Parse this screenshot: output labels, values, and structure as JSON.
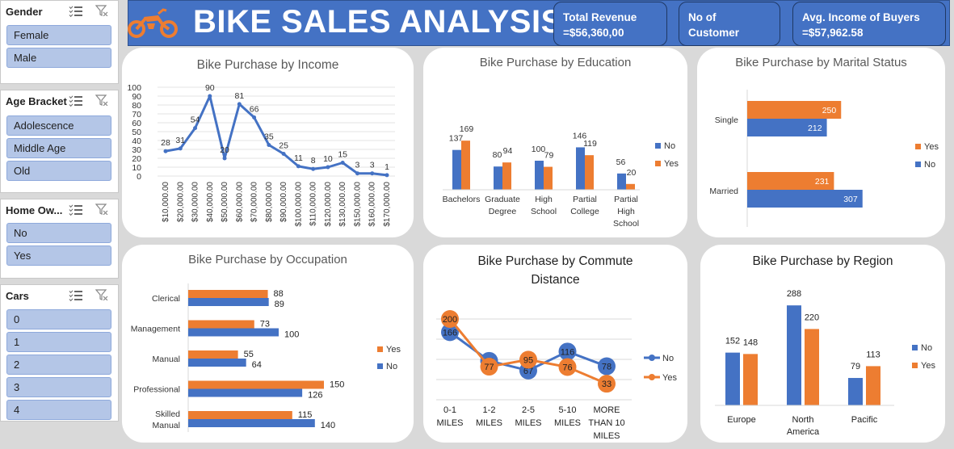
{
  "header": {
    "title": "BIKE SALES ANALYSIS",
    "kpis": [
      {
        "label": "Total Revenue",
        "value": "=$56,360,00"
      },
      {
        "label": "No of",
        "value": "Customer"
      },
      {
        "label": "Avg. Income of Buyers",
        "value": "=$57,962.58"
      }
    ]
  },
  "slicers": {
    "gender": {
      "title": "Gender",
      "items": [
        "Female",
        "Male"
      ]
    },
    "age": {
      "title": "Age Bracket",
      "items": [
        "Adolescence",
        "Middle Age",
        "Old"
      ]
    },
    "home": {
      "title": "Home Ow...",
      "items": [
        "No",
        "Yes"
      ]
    },
    "cars": {
      "title": "Cars",
      "items": [
        "0",
        "1",
        "2",
        "3",
        "4"
      ]
    }
  },
  "colors": {
    "no": "#4472c4",
    "yes": "#ed7d31",
    "header": "#4472c4",
    "slicer_item": "#b4c6e7"
  },
  "icons": [
    "motorcycle-icon",
    "multi-select-icon",
    "clear-filter-icon"
  ],
  "chart_data": [
    {
      "id": "income",
      "type": "line",
      "title": "Bike Purchase by Income",
      "x": [
        "$10,000.00",
        "$20,000.00",
        "$30,000.00",
        "$40,000.00",
        "$50,000.00",
        "$60,000.00",
        "$70,000.00",
        "$80,000.00",
        "$90,000.00",
        "$100,000.00",
        "$110,000.00",
        "$120,000.00",
        "$130,000.00",
        "$150,000.00",
        "$160,000.00",
        "$170,000.00"
      ],
      "values": [
        28,
        31,
        54,
        90,
        20,
        81,
        66,
        35,
        25,
        11,
        8,
        10,
        15,
        3,
        3,
        1
      ],
      "yticks": [
        0,
        10,
        20,
        30,
        40,
        50,
        60,
        70,
        80,
        90,
        100
      ],
      "ylim": [
        0,
        100
      ],
      "grid": true
    },
    {
      "id": "education",
      "type": "bar",
      "title": "Bike Purchase by Education",
      "categories": [
        "Bachelors",
        "Graduate Degree",
        "High School",
        "Partial College",
        "Partial High School"
      ],
      "series": [
        {
          "name": "No",
          "values": [
            137,
            80,
            100,
            146,
            56
          ]
        },
        {
          "name": "Yes",
          "values": [
            169,
            94,
            79,
            119,
            20
          ]
        }
      ],
      "legend": "right"
    },
    {
      "id": "marital",
      "type": "bar",
      "orientation": "horizontal",
      "title": "Bike Purchase by Marital Status",
      "categories": [
        "Single",
        "Married"
      ],
      "series": [
        {
          "name": "Yes",
          "values": [
            250,
            231
          ]
        },
        {
          "name": "No",
          "values": [
            212,
            307
          ]
        }
      ],
      "legend": "right"
    },
    {
      "id": "occupation",
      "type": "bar",
      "orientation": "horizontal",
      "title": "Bike Purchase by Occupation",
      "categories": [
        "Clerical",
        "Management",
        "Manual",
        "Professional",
        "Skilled Manual"
      ],
      "series": [
        {
          "name": "Yes",
          "values": [
            88,
            73,
            55,
            150,
            115
          ]
        },
        {
          "name": "No",
          "values": [
            89,
            100,
            64,
            126,
            140
          ]
        }
      ],
      "legend": "right"
    },
    {
      "id": "commute",
      "type": "line",
      "title": "Bike Purchase by Commute Distance",
      "categories": [
        "0-1 MILES",
        "1-2 MILES",
        "2-5 MILES",
        "5-10 MILES",
        "MORE THAN 10 MILES"
      ],
      "series": [
        {
          "name": "No",
          "values": [
            166,
            92,
            67,
            116,
            78
          ]
        },
        {
          "name": "Yes",
          "values": [
            200,
            77,
            95,
            76,
            33
          ]
        }
      ],
      "grid": true,
      "legend": "right"
    },
    {
      "id": "region",
      "type": "bar",
      "title": "Bike Purchase by Region",
      "categories": [
        "Europe",
        "North America",
        "Pacific"
      ],
      "series": [
        {
          "name": "No",
          "values": [
            152,
            288,
            79
          ]
        },
        {
          "name": "Yes",
          "values": [
            148,
            220,
            113
          ]
        }
      ],
      "legend": "right"
    }
  ]
}
